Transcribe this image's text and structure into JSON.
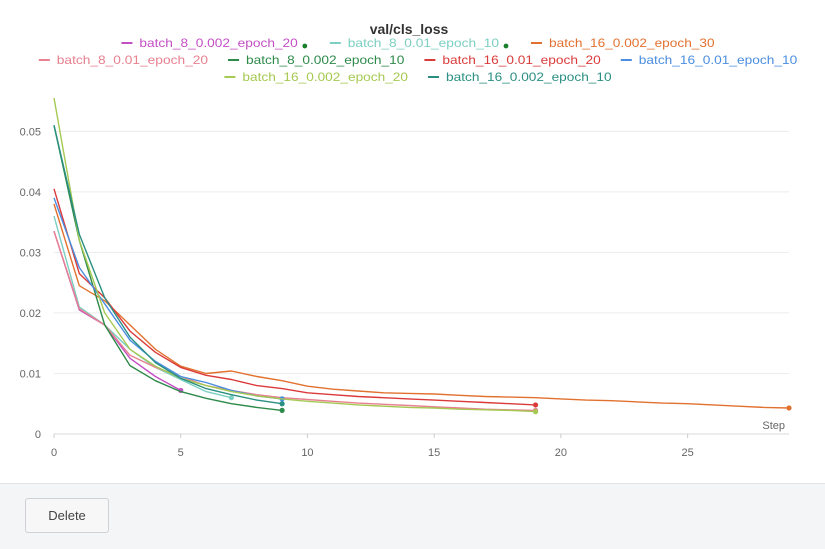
{
  "footer": {
    "delete_label": "Delete"
  },
  "chart_data": {
    "type": "line",
    "title": "val/cls_loss",
    "xlabel": "Step",
    "ylabel": "",
    "xlim": [
      0,
      29
    ],
    "ylim": [
      0,
      0.056
    ],
    "xticks": [
      0,
      5,
      10,
      15,
      20,
      25
    ],
    "yticks": [
      0,
      0.01,
      0.02,
      0.03,
      0.04,
      0.05
    ],
    "ytick_labels": [
      "0",
      "0.01",
      "0.02",
      "0.03",
      "0.04",
      "0.05"
    ],
    "grid": "horizontal",
    "legend_position": "top",
    "series": [
      {
        "name": "batch_8_0.002_epoch_20",
        "color": "#c44fc4",
        "x": [
          0,
          1,
          2,
          3,
          4,
          5
        ],
        "y": [
          0.0335,
          0.0205,
          0.018,
          0.0125,
          0.0095,
          0.0072
        ],
        "final_marker": true
      },
      {
        "name": "batch_8_0.01_epoch_10",
        "color": "#7ccfc2",
        "x": [
          0,
          1,
          2,
          3,
          4,
          5,
          6,
          7
        ],
        "y": [
          0.036,
          0.021,
          0.018,
          0.014,
          0.011,
          0.009,
          0.007,
          0.006
        ],
        "final_marker": true
      },
      {
        "name": "batch_16_0.002_epoch_30",
        "color": "#e2712f",
        "x": [
          0,
          1,
          2,
          3,
          4,
          5,
          6,
          7,
          8,
          9,
          10,
          11,
          12,
          13,
          14,
          15,
          16,
          17,
          18,
          19,
          20,
          21,
          22,
          23,
          24,
          25,
          26,
          27,
          28,
          29
        ],
        "y": [
          0.038,
          0.0245,
          0.022,
          0.018,
          0.014,
          0.0112,
          0.01,
          0.0104,
          0.0095,
          0.0088,
          0.0079,
          0.0074,
          0.0071,
          0.0068,
          0.0067,
          0.0066,
          0.0064,
          0.0062,
          0.0061,
          0.006,
          0.0058,
          0.0056,
          0.0055,
          0.0053,
          0.0051,
          0.005,
          0.0048,
          0.0046,
          0.0044,
          0.0043
        ],
        "final_marker": true
      },
      {
        "name": "batch_8_0.01_epoch_20",
        "color": "#e7808f",
        "x": [
          0,
          1,
          2,
          3,
          4,
          5,
          6,
          7,
          8,
          9,
          10,
          11,
          12,
          13,
          14,
          15,
          16,
          17,
          18,
          19
        ],
        "y": [
          0.0335,
          0.0207,
          0.018,
          0.013,
          0.011,
          0.0095,
          0.008,
          0.0072,
          0.0065,
          0.006,
          0.0057,
          0.0054,
          0.0051,
          0.0049,
          0.0047,
          0.0045,
          0.0043,
          0.0041,
          0.004,
          0.0039
        ],
        "final_marker": true
      },
      {
        "name": "batch_8_0.002_epoch_10",
        "color": "#2e8a4a",
        "x": [
          0,
          1,
          2,
          3,
          4,
          5,
          6,
          7,
          8,
          9
        ],
        "y": [
          0.051,
          0.032,
          0.018,
          0.0113,
          0.0088,
          0.007,
          0.0059,
          0.005,
          0.0044,
          0.0039
        ],
        "final_marker": true
      },
      {
        "name": "batch_16_0.01_epoch_20",
        "color": "#db3a3a",
        "x": [
          0,
          1,
          2,
          3,
          4,
          5,
          6,
          7,
          8,
          9,
          10,
          11,
          12,
          13,
          14,
          15,
          16,
          17,
          18,
          19
        ],
        "y": [
          0.0405,
          0.0265,
          0.0225,
          0.017,
          0.0135,
          0.011,
          0.0097,
          0.009,
          0.008,
          0.0075,
          0.0068,
          0.0065,
          0.0062,
          0.006,
          0.0058,
          0.0056,
          0.0054,
          0.0052,
          0.005,
          0.0048
        ],
        "final_marker": true
      },
      {
        "name": "batch_16_0.01_epoch_10",
        "color": "#4a8ee0",
        "x": [
          0,
          1,
          2,
          3,
          4,
          5,
          6,
          7,
          8,
          9
        ],
        "y": [
          0.039,
          0.0275,
          0.0215,
          0.0155,
          0.012,
          0.0095,
          0.0085,
          0.0072,
          0.0063,
          0.0058
        ],
        "final_marker": true
      },
      {
        "name": "batch_16_0.002_epoch_20",
        "color": "#a5c952",
        "x": [
          0,
          1,
          2,
          3,
          4,
          5,
          6,
          7,
          8,
          9,
          10,
          11,
          12,
          13,
          14,
          15,
          16,
          17,
          18,
          19
        ],
        "y": [
          0.0555,
          0.032,
          0.02,
          0.014,
          0.0112,
          0.0092,
          0.008,
          0.007,
          0.0063,
          0.0058,
          0.0054,
          0.0051,
          0.0048,
          0.0046,
          0.0044,
          0.0043,
          0.0041,
          0.004,
          0.0039,
          0.0037
        ],
        "final_marker": true
      },
      {
        "name": "batch_16_0.002_epoch_10",
        "color": "#2a8f82",
        "x": [
          0,
          1,
          2,
          3,
          4,
          5,
          6,
          7,
          8,
          9
        ],
        "y": [
          0.051,
          0.033,
          0.0225,
          0.016,
          0.0118,
          0.0092,
          0.0075,
          0.0065,
          0.0056,
          0.005
        ],
        "final_marker": true
      }
    ],
    "legend_status_dots": [
      "batch_8_0.002_epoch_20",
      "batch_8_0.01_epoch_10"
    ]
  }
}
